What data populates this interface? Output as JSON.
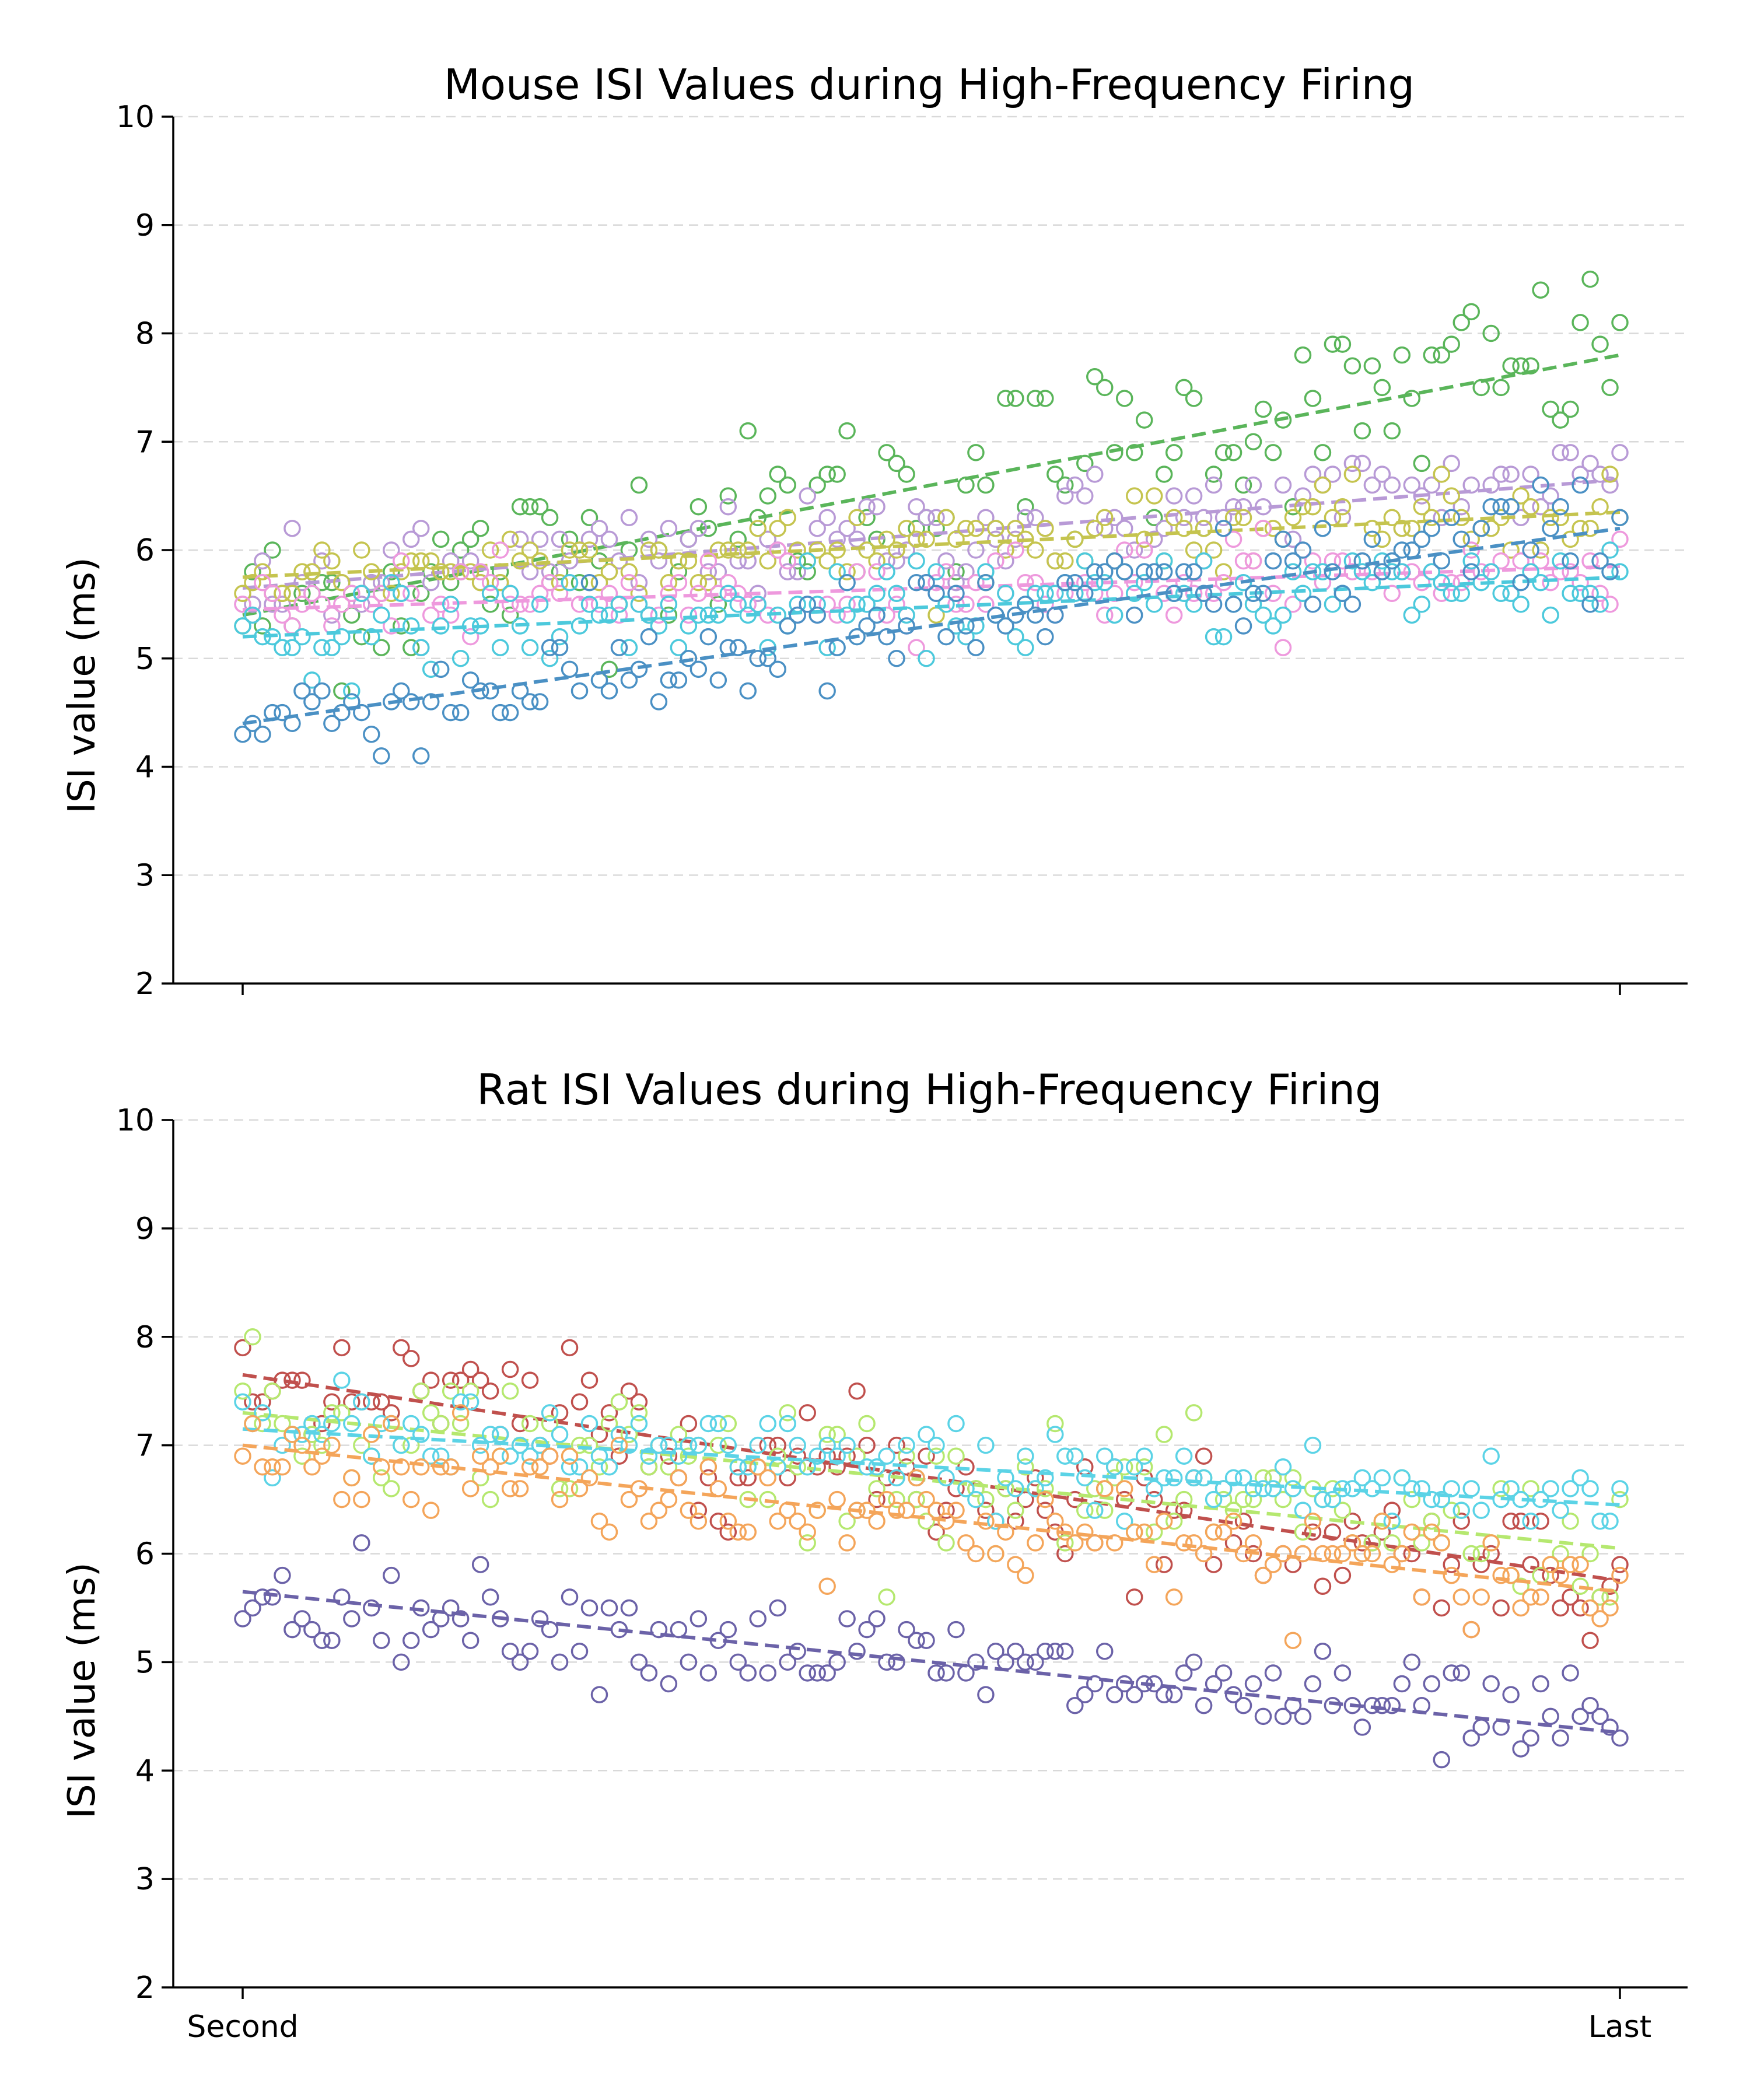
{
  "chart_data": [
    {
      "type": "scatter",
      "title": "Mouse ISI Values during High-Frequency Firing",
      "xlabel": "",
      "ylabel": "ISI value (ms)",
      "ylim": [
        2,
        10
      ],
      "yticks": [
        2,
        3,
        4,
        5,
        6,
        7,
        8,
        9,
        10
      ],
      "xtick_labels": [],
      "x_categories": [
        "Second",
        "Last"
      ],
      "grid": "horizontal dashed",
      "points_per_series": 140,
      "series": [
        {
          "color": "#5ab55a",
          "trend": [
            5.4,
            7.8
          ],
          "noise": 0.42
        },
        {
          "color": "#b89ad6",
          "trend": [
            5.65,
            6.65
          ],
          "noise": 0.22
        },
        {
          "color": "#c5c44f",
          "trend": [
            5.75,
            6.35
          ],
          "noise": 0.18
        },
        {
          "color": "#ee99dd",
          "trend": [
            5.45,
            5.85
          ],
          "noise": 0.18
        },
        {
          "color": "#4cc9dc",
          "trend": [
            5.2,
            5.75
          ],
          "noise": 0.2
        },
        {
          "color": "#4a90c4",
          "trend": [
            4.4,
            6.2
          ],
          "noise": 0.25
        }
      ]
    },
    {
      "type": "scatter",
      "title": "Rat ISI Values during High-Frequency Firing",
      "xlabel": "",
      "ylabel": "ISI value (ms)",
      "ylim": [
        2,
        10
      ],
      "yticks": [
        2,
        3,
        4,
        5,
        6,
        7,
        8,
        9,
        10
      ],
      "xtick_labels": [
        "Second",
        "Last"
      ],
      "grid": "horizontal dashed",
      "points_per_series": 140,
      "series": [
        {
          "color": "#c0504d",
          "trend": [
            7.65,
            5.75
          ],
          "noise": 0.3
        },
        {
          "color": "#b5e86f",
          "trend": [
            7.3,
            6.05
          ],
          "noise": 0.28
        },
        {
          "color": "#5bd3e6",
          "trend": [
            7.15,
            6.45
          ],
          "noise": 0.2
        },
        {
          "color": "#f4a55a",
          "trend": [
            7.0,
            5.65
          ],
          "noise": 0.25
        },
        {
          "color": "#6b62a8",
          "trend": [
            5.65,
            4.35
          ],
          "noise": 0.22
        }
      ]
    }
  ]
}
